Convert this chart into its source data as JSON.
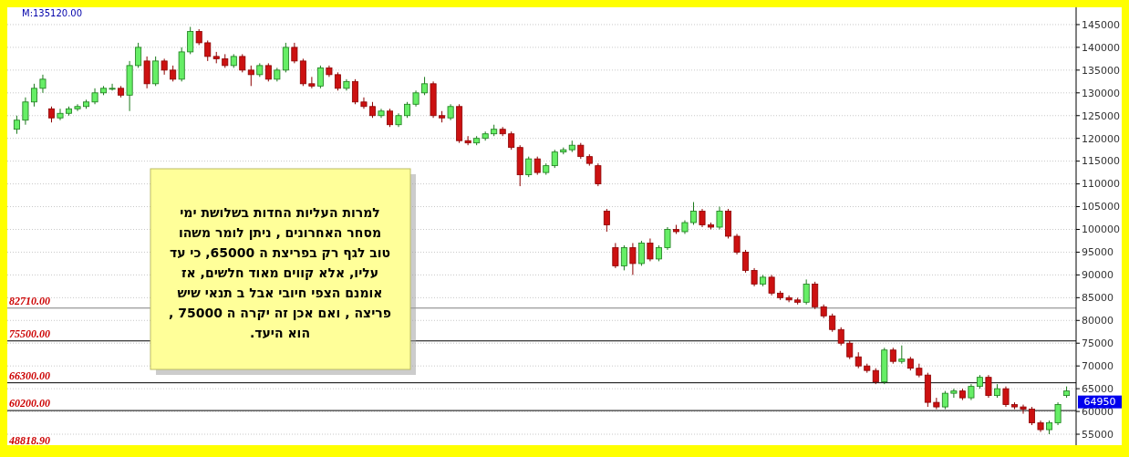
{
  "chart_data": {
    "type": "candlestick",
    "categories": [
      null,
      null,
      null,
      null,
      null,
      null,
      null,
      null,
      null,
      null,
      null,
      null,
      null,
      null,
      null,
      null,
      null,
      null,
      null,
      null,
      null,
      null,
      null,
      null,
      null,
      null,
      null,
      null,
      null,
      null,
      null,
      null,
      null,
      null,
      null,
      null,
      null,
      null,
      null,
      null,
      null,
      null,
      null,
      null,
      null,
      null,
      null,
      null,
      null,
      null,
      null,
      null,
      null,
      null,
      null,
      null,
      null,
      null,
      null,
      null,
      null,
      null,
      null,
      null,
      null,
      null,
      null,
      null,
      null,
      null,
      null,
      null,
      null,
      null,
      null,
      null,
      null,
      null,
      null,
      null,
      null,
      null,
      null,
      null,
      null,
      null,
      null,
      null,
      null,
      null,
      null,
      null,
      null,
      null,
      null,
      null,
      null,
      null,
      null,
      null,
      null,
      null,
      null,
      null,
      null,
      null,
      null,
      null,
      null,
      null,
      null,
      null,
      null,
      null,
      null,
      null,
      null,
      null,
      null,
      null,
      null,
      null
    ],
    "ohlc": [
      [
        122000,
        125000,
        121000,
        124000
      ],
      [
        124000,
        129000,
        123000,
        128000
      ],
      [
        128000,
        132000,
        127000,
        131000
      ],
      [
        131000,
        134000,
        130000,
        133000
      ],
      [
        126500,
        127000,
        123500,
        124500
      ],
      [
        124500,
        126500,
        124000,
        125500
      ],
      [
        125500,
        127000,
        125000,
        126500
      ],
      [
        126500,
        127500,
        126000,
        127000
      ],
      [
        127000,
        128500,
        126500,
        128000
      ],
      [
        128000,
        131000,
        127500,
        130000
      ],
      [
        130000,
        131500,
        129500,
        131000
      ],
      [
        131000,
        132000,
        130500,
        131000
      ],
      [
        131000,
        131500,
        129000,
        129500
      ],
      [
        129500,
        137000,
        126000,
        136000
      ],
      [
        136000,
        141000,
        135500,
        140000
      ],
      [
        137000,
        138000,
        131000,
        132000
      ],
      [
        132000,
        138000,
        131500,
        137000
      ],
      [
        137000,
        137500,
        134000,
        135000
      ],
      [
        135000,
        136000,
        132500,
        133000
      ],
      [
        133000,
        140000,
        132500,
        139000
      ],
      [
        139000,
        144500,
        138500,
        143500
      ],
      [
        143500,
        144000,
        140500,
        141000
      ],
      [
        141000,
        141500,
        137000,
        138000
      ],
      [
        138000,
        139000,
        136500,
        137500
      ],
      [
        137500,
        138500,
        135500,
        136000
      ],
      [
        136000,
        138500,
        135500,
        138000
      ],
      [
        138000,
        138500,
        134500,
        135000
      ],
      [
        135000,
        136000,
        131500,
        134000
      ],
      [
        134000,
        136500,
        133500,
        136000
      ],
      [
        136000,
        136500,
        132500,
        133000
      ],
      [
        133000,
        135500,
        132500,
        135000
      ],
      [
        135000,
        141000,
        134500,
        140000
      ],
      [
        140000,
        141000,
        136500,
        137000
      ],
      [
        137000,
        137500,
        131500,
        132000
      ],
      [
        132000,
        133500,
        131000,
        131500
      ],
      [
        131500,
        136000,
        131000,
        135500
      ],
      [
        135500,
        136000,
        133500,
        134000
      ],
      [
        134000,
        134500,
        130500,
        131000
      ],
      [
        131000,
        133000,
        130500,
        132500
      ],
      [
        132500,
        133000,
        127500,
        128000
      ],
      [
        128000,
        129000,
        126500,
        127000
      ],
      [
        127000,
        128000,
        124500,
        125000
      ],
      [
        125000,
        126500,
        124500,
        126000
      ],
      [
        126000,
        126500,
        122500,
        123000
      ],
      [
        123000,
        125500,
        122500,
        125000
      ],
      [
        125000,
        128000,
        124500,
        127500
      ],
      [
        127500,
        130500,
        127000,
        130000
      ],
      [
        130000,
        133500,
        129500,
        132000
      ],
      [
        132000,
        132500,
        124500,
        125000
      ],
      [
        125000,
        126000,
        123500,
        124500
      ],
      [
        124500,
        127500,
        124000,
        127000
      ],
      [
        127000,
        127500,
        119000,
        119500
      ],
      [
        119500,
        120500,
        118500,
        119000
      ],
      [
        119000,
        120500,
        118500,
        120000
      ],
      [
        120000,
        121500,
        119500,
        121000
      ],
      [
        121000,
        123000,
        120500,
        122000
      ],
      [
        122000,
        122500,
        120500,
        121000
      ],
      [
        121000,
        121500,
        117500,
        118000
      ],
      [
        118000,
        118500,
        109500,
        112000
      ],
      [
        112000,
        116000,
        111500,
        115500
      ],
      [
        115500,
        116000,
        112000,
        112500
      ],
      [
        112500,
        114500,
        112000,
        114000
      ],
      [
        114000,
        117500,
        113500,
        117000
      ],
      [
        117000,
        118000,
        116500,
        117500
      ],
      [
        117500,
        119500,
        117000,
        118500
      ],
      [
        118500,
        119000,
        115500,
        116000
      ],
      [
        116000,
        116500,
        114000,
        114500
      ],
      [
        114000,
        114500,
        109500,
        110000
      ],
      [
        104000,
        104500,
        99500,
        101000
      ],
      [
        96000,
        97000,
        91500,
        92000
      ],
      [
        92000,
        96500,
        91000,
        96000
      ],
      [
        96000,
        97000,
        90000,
        92500
      ],
      [
        92500,
        97500,
        92000,
        97000
      ],
      [
        97000,
        98000,
        93000,
        93500
      ],
      [
        93500,
        96500,
        93000,
        96000
      ],
      [
        96000,
        100500,
        95500,
        100000
      ],
      [
        100000,
        101000,
        99000,
        99500
      ],
      [
        99500,
        102000,
        99000,
        101500
      ],
      [
        101500,
        106000,
        101000,
        104000
      ],
      [
        104000,
        104500,
        100500,
        101000
      ],
      [
        101000,
        101500,
        100000,
        100500
      ],
      [
        100500,
        105000,
        100000,
        104000
      ],
      [
        104000,
        104500,
        98000,
        98500
      ],
      [
        98500,
        99000,
        94500,
        95000
      ],
      [
        95000,
        95500,
        90500,
        91000
      ],
      [
        91000,
        91500,
        87500,
        88000
      ],
      [
        88000,
        90000,
        87500,
        89500
      ],
      [
        89500,
        90000,
        85500,
        86000
      ],
      [
        86000,
        86500,
        84500,
        85000
      ],
      [
        85000,
        85500,
        84000,
        84500
      ],
      [
        84500,
        85000,
        83500,
        84000
      ],
      [
        84000,
        89000,
        83500,
        88000
      ],
      [
        88000,
        88500,
        82500,
        83000
      ],
      [
        83000,
        83500,
        80500,
        81000
      ],
      [
        81000,
        81500,
        77500,
        78000
      ],
      [
        78000,
        78500,
        74500,
        75000
      ],
      [
        75000,
        75500,
        71500,
        72000
      ],
      [
        72000,
        73000,
        69500,
        70000
      ],
      [
        70000,
        70500,
        68500,
        69000
      ],
      [
        69000,
        69500,
        66000,
        66500
      ],
      [
        66500,
        74000,
        66000,
        73500
      ],
      [
        73500,
        74000,
        70500,
        71000
      ],
      [
        71000,
        74500,
        70500,
        71500
      ],
      [
        71500,
        72000,
        69000,
        69500
      ],
      [
        69500,
        70500,
        67500,
        68000
      ],
      [
        68000,
        68500,
        61000,
        62000
      ],
      [
        62000,
        63000,
        60500,
        61000
      ],
      [
        61000,
        64500,
        60500,
        64000
      ],
      [
        64000,
        65000,
        63000,
        64500
      ],
      [
        64500,
        65000,
        62500,
        63000
      ],
      [
        63000,
        66000,
        62500,
        65500
      ],
      [
        65500,
        68000,
        65000,
        67500
      ],
      [
        67500,
        68000,
        63000,
        63500
      ],
      [
        63500,
        66000,
        63000,
        65000
      ],
      [
        65000,
        65500,
        61000,
        61500
      ],
      [
        61500,
        62000,
        60500,
        61000
      ],
      [
        61000,
        61500,
        59500,
        60500
      ],
      [
        60500,
        61000,
        57000,
        57500
      ],
      [
        57500,
        58000,
        55500,
        56000
      ],
      [
        56000,
        58000,
        55000,
        57500
      ],
      [
        57500,
        62000,
        57000,
        61500
      ],
      [
        63500,
        65500,
        63000,
        64500
      ]
    ],
    "ylim": [
      52600,
      148800
    ],
    "yticks": [
      55000,
      60000,
      65000,
      70000,
      75000,
      80000,
      85000,
      90000,
      95000,
      100000,
      105000,
      110000,
      115000,
      120000,
      125000,
      130000,
      135000,
      140000,
      145000
    ],
    "grid": "y",
    "ref_lines": [
      {
        "axis": "y",
        "value": 82710,
        "label": "82710.00",
        "color": "#808080"
      },
      {
        "axis": "y",
        "value": 75500,
        "label": "75500.00",
        "color": "#000000"
      },
      {
        "axis": "y",
        "value": 66300,
        "label": "66300.00",
        "color": "#000000"
      },
      {
        "axis": "y",
        "value": 60200,
        "label": "60200.00",
        "color": "#000000"
      }
    ],
    "annotations": [
      "M:135120.00",
      "48818.90",
      "64950",
      "למרות העליות החדות בשלושת ימי\nמסחר האחרונים , ניתן לומר משהו\nטוב לגף רק בפריצת ה 65000, כי עד\nעליו, אלא קווים מאוד חלשים, אז\nאומנם הצפי חיובי אבל ב תנאי שיש\nפריצה , ואם אכן זה יקרה ה 75000 ,\nהוא היעד."
    ]
  }
}
